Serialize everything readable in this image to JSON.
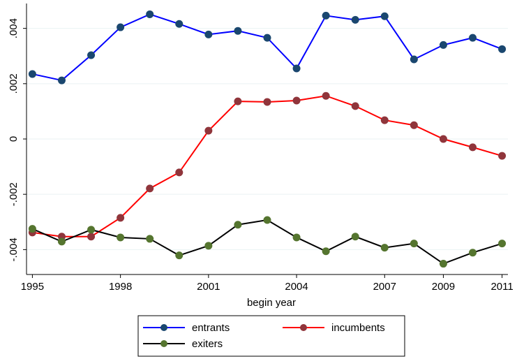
{
  "chart_data": {
    "type": "line",
    "x_label": "begin year",
    "x": [
      1995,
      1996,
      1997,
      1998,
      1999,
      2000,
      2001,
      2002,
      2003,
      2004,
      2005,
      2006,
      2007,
      2008,
      2009,
      2010,
      2011
    ],
    "series": [
      {
        "name": "entrants",
        "color": "#0000ff",
        "marker_color": "#1a476f",
        "values": [
          0.00235,
          0.00212,
          0.00303,
          0.00404,
          0.00451,
          0.00416,
          0.00378,
          0.00391,
          0.00366,
          0.00255,
          0.00446,
          0.00431,
          0.00444,
          0.00288,
          0.0034,
          0.00366,
          0.00325
        ]
      },
      {
        "name": "incumbents",
        "color": "#ff0000",
        "marker_color": "#90353b",
        "values": [
          -0.00338,
          -0.00353,
          -0.00353,
          -0.00285,
          -0.00179,
          -0.00121,
          0.0003,
          0.00136,
          0.00134,
          0.00139,
          0.00156,
          0.00119,
          0.00068,
          0.0005,
          0,
          -0.0003,
          -0.00061
        ]
      },
      {
        "name": "exiters",
        "color": "#000000",
        "marker_color": "#55752f",
        "values": [
          -0.00325,
          -0.00371,
          -0.00328,
          -0.00356,
          -0.00361,
          -0.00421,
          -0.00386,
          -0.0031,
          -0.00293,
          -0.00356,
          -0.00406,
          -0.00353,
          -0.00393,
          -0.00378,
          -0.00451,
          -0.00411,
          -0.00378
        ]
      }
    ],
    "xlim": [
      1994.8,
      2011.2
    ],
    "xticks": [
      1995,
      1998,
      2001,
      2004,
      2007,
      2009,
      2011
    ],
    "ylim": [
      -0.0049,
      0.0049
    ],
    "yticks": [
      {
        "value": -0.004,
        "label": "-.004"
      },
      {
        "value": -0.002,
        "label": "-.002"
      },
      0,
      {
        "value": 0.002,
        "label": ".002"
      },
      {
        "value": 0.004,
        "label": ".004"
      }
    ],
    "grid": true,
    "legend_position": "bottom"
  }
}
